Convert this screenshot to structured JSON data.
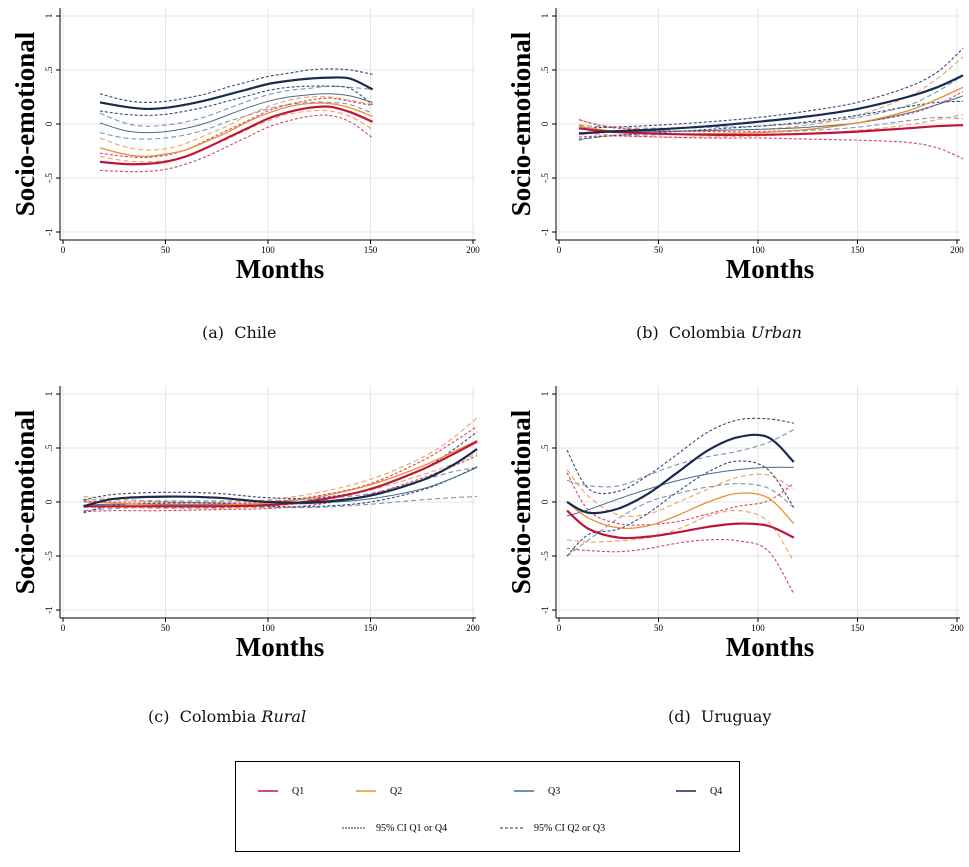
{
  "colors": {
    "Q1": "#c0143c",
    "Q2": "#e8902e",
    "Q3": "#4a6b85",
    "Q4": "#1a2a4f",
    "grid": "#e6e6e6",
    "ci_q1": "#d14670",
    "ci_q2": "#f0a060",
    "ci_q3": "#7a95ad",
    "ci_q4": "#3a4a75"
  },
  "legend": {
    "items": [
      {
        "label": "Q1",
        "color": "#c0143c"
      },
      {
        "label": "Q2",
        "color": "#e8902e"
      },
      {
        "label": "Q3",
        "color": "#4a6b85"
      },
      {
        "label": "Q4",
        "color": "#1a2a4f"
      }
    ],
    "ci_items": [
      {
        "label": "95% CI Q1 or Q4",
        "dash": "fine"
      },
      {
        "label": "95% CI Q2 or Q3",
        "dash": "coarse"
      }
    ]
  },
  "chart_data": [
    {
      "id": "chile",
      "type": "line",
      "caption_prefix": "(a)",
      "caption_main": "Chile",
      "caption_italic": "",
      "xlabel": "Months",
      "ylabel": "Socio-emotional",
      "xlim": [
        0,
        200
      ],
      "ylim": [
        -1,
        1
      ],
      "xticks": [
        "0",
        "50",
        "100",
        "150",
        "200"
      ],
      "yticks": [
        "-1",
        "-.5",
        "0",
        ".5",
        "1"
      ],
      "x": [
        18,
        30,
        40,
        50,
        60,
        70,
        80,
        90,
        100,
        110,
        120,
        130,
        140,
        151
      ],
      "series": [
        {
          "name": "Q1",
          "values": [
            -0.35,
            -0.37,
            -0.37,
            -0.35,
            -0.3,
            -0.22,
            -0.13,
            -0.04,
            0.05,
            0.11,
            0.15,
            0.16,
            0.11,
            0.02
          ],
          "ci_low": [
            -0.43,
            -0.44,
            -0.44,
            -0.42,
            -0.37,
            -0.3,
            -0.21,
            -0.12,
            -0.03,
            0.03,
            0.07,
            0.08,
            0.02,
            -0.13
          ],
          "ci_high": [
            -0.27,
            -0.3,
            -0.31,
            -0.29,
            -0.24,
            -0.15,
            -0.06,
            0.03,
            0.12,
            0.18,
            0.22,
            0.24,
            0.21,
            0.17
          ]
        },
        {
          "name": "Q2",
          "values": [
            -0.22,
            -0.28,
            -0.3,
            -0.28,
            -0.24,
            -0.16,
            -0.08,
            0.02,
            0.1,
            0.16,
            0.19,
            0.19,
            0.15,
            0.07
          ],
          "ci_low": [
            -0.3,
            -0.34,
            -0.35,
            -0.34,
            -0.3,
            -0.22,
            -0.14,
            -0.05,
            0.03,
            0.09,
            0.12,
            0.12,
            0.07,
            -0.05
          ],
          "ci_high": [
            -0.13,
            -0.21,
            -0.24,
            -0.23,
            -0.18,
            -0.1,
            -0.02,
            0.08,
            0.16,
            0.22,
            0.25,
            0.25,
            0.22,
            0.18
          ]
        },
        {
          "name": "Q3",
          "values": [
            0.01,
            -0.06,
            -0.08,
            -0.07,
            -0.04,
            0.01,
            0.08,
            0.15,
            0.21,
            0.25,
            0.27,
            0.28,
            0.26,
            0.2
          ],
          "ci_low": [
            -0.08,
            -0.13,
            -0.14,
            -0.13,
            -0.1,
            -0.05,
            0.02,
            0.08,
            0.14,
            0.18,
            0.2,
            0.2,
            0.18,
            0.1
          ],
          "ci_high": [
            0.1,
            0.01,
            -0.02,
            -0.01,
            0.02,
            0.07,
            0.14,
            0.21,
            0.27,
            0.31,
            0.33,
            0.35,
            0.34,
            0.32
          ]
        },
        {
          "name": "Q4",
          "values": [
            0.2,
            0.16,
            0.14,
            0.15,
            0.18,
            0.22,
            0.27,
            0.32,
            0.37,
            0.4,
            0.42,
            0.43,
            0.42,
            0.32
          ],
          "ci_low": [
            0.12,
            0.09,
            0.08,
            0.09,
            0.12,
            0.16,
            0.21,
            0.26,
            0.31,
            0.34,
            0.35,
            0.35,
            0.33,
            0.18
          ],
          "ci_high": [
            0.28,
            0.22,
            0.2,
            0.21,
            0.24,
            0.28,
            0.34,
            0.39,
            0.44,
            0.47,
            0.5,
            0.51,
            0.5,
            0.46
          ]
        }
      ]
    },
    {
      "id": "colombia-urban",
      "type": "line",
      "caption_prefix": "(b)",
      "caption_main": "Colombia",
      "caption_italic": "Urban",
      "xlabel": "Months",
      "ylabel": "Socio-emotional",
      "xlim": [
        0,
        200
      ],
      "ylim": [
        -1,
        1
      ],
      "xticks": [
        "0",
        "50",
        "100",
        "150",
        "200"
      ],
      "yticks": [
        "-1",
        "-.5",
        "0",
        ".5",
        "1"
      ],
      "x": [
        10,
        25,
        50,
        75,
        100,
        125,
        150,
        175,
        190,
        203
      ],
      "series": [
        {
          "name": "Q1",
          "values": [
            -0.04,
            -0.07,
            -0.09,
            -0.1,
            -0.1,
            -0.09,
            -0.07,
            -0.04,
            -0.02,
            -0.01
          ],
          "ci_low": [
            -0.12,
            -0.11,
            -0.12,
            -0.13,
            -0.13,
            -0.14,
            -0.15,
            -0.17,
            -0.22,
            -0.32
          ],
          "ci_high": [
            0.04,
            -0.03,
            -0.06,
            -0.07,
            -0.07,
            -0.05,
            0.01,
            0.09,
            0.18,
            0.3
          ]
        },
        {
          "name": "Q2",
          "values": [
            -0.02,
            -0.06,
            -0.09,
            -0.09,
            -0.08,
            -0.05,
            0.01,
            0.12,
            0.23,
            0.34
          ],
          "ci_low": [
            -0.08,
            -0.1,
            -0.12,
            -0.12,
            -0.11,
            -0.09,
            -0.06,
            -0.01,
            0.04,
            0.09
          ],
          "ci_high": [
            0.04,
            -0.02,
            -0.06,
            -0.06,
            -0.05,
            -0.01,
            0.08,
            0.25,
            0.42,
            0.62
          ]
        },
        {
          "name": "Q3",
          "values": [
            -0.08,
            -0.07,
            -0.07,
            -0.06,
            -0.05,
            -0.03,
            0.01,
            0.1,
            0.18,
            0.26
          ],
          "ci_low": [
            -0.15,
            -0.11,
            -0.1,
            -0.09,
            -0.08,
            -0.06,
            -0.03,
            0.03,
            0.06,
            0.05
          ],
          "ci_high": [
            -0.01,
            -0.03,
            -0.04,
            -0.03,
            -0.02,
            0.01,
            0.06,
            0.17,
            0.3,
            0.45
          ]
        },
        {
          "name": "Q4",
          "values": [
            -0.09,
            -0.07,
            -0.05,
            -0.02,
            0.02,
            0.07,
            0.14,
            0.25,
            0.34,
            0.45
          ],
          "ci_low": [
            -0.14,
            -0.11,
            -0.08,
            -0.05,
            -0.02,
            0.02,
            0.08,
            0.16,
            0.2,
            0.21
          ],
          "ci_high": [
            -0.04,
            -0.03,
            -0.01,
            0.02,
            0.06,
            0.12,
            0.2,
            0.34,
            0.48,
            0.7
          ]
        }
      ]
    },
    {
      "id": "colombia-rural",
      "type": "line",
      "caption_prefix": "(c)",
      "caption_main": "Colombia",
      "caption_italic": "Rural",
      "xlabel": "Months",
      "ylabel": "Socio-emotional",
      "xlim": [
        0,
        200
      ],
      "ylim": [
        -1,
        1
      ],
      "xticks": [
        "0",
        "50",
        "100",
        "150",
        "200"
      ],
      "yticks": [
        "-1",
        "-.5",
        "0",
        ".5",
        "1"
      ],
      "x": [
        10,
        25,
        50,
        75,
        100,
        125,
        150,
        175,
        190,
        202
      ],
      "series": [
        {
          "name": "Q1",
          "values": [
            -0.04,
            -0.04,
            -0.04,
            -0.04,
            -0.03,
            0.02,
            0.12,
            0.3,
            0.44,
            0.56
          ],
          "ci_low": [
            -0.09,
            -0.08,
            -0.08,
            -0.07,
            -0.06,
            -0.02,
            0.07,
            0.22,
            0.33,
            0.43
          ],
          "ci_high": [
            0.01,
            0.0,
            0.0,
            -0.01,
            0.0,
            0.06,
            0.17,
            0.38,
            0.55,
            0.7
          ]
        },
        {
          "name": "Q2",
          "values": [
            0.0,
            -0.01,
            -0.03,
            -0.03,
            -0.01,
            0.05,
            0.16,
            0.33,
            0.46,
            0.57
          ],
          "ci_low": [
            -0.05,
            -0.05,
            -0.06,
            -0.06,
            -0.04,
            0.01,
            0.11,
            0.25,
            0.35,
            0.45
          ],
          "ci_high": [
            0.05,
            0.03,
            0.0,
            0.0,
            0.02,
            0.09,
            0.21,
            0.41,
            0.59,
            0.78
          ]
        },
        {
          "name": "Q3",
          "values": [
            -0.03,
            -0.02,
            -0.02,
            -0.02,
            -0.02,
            -0.01,
            0.03,
            0.12,
            0.22,
            0.32
          ],
          "ci_low": [
            -0.08,
            -0.06,
            -0.05,
            -0.05,
            -0.05,
            -0.05,
            -0.02,
            0.02,
            0.04,
            0.05
          ],
          "ci_high": [
            0.02,
            0.02,
            0.01,
            0.01,
            0.01,
            0.03,
            0.08,
            0.2,
            0.28,
            0.32
          ]
        },
        {
          "name": "Q4",
          "values": [
            -0.04,
            0.03,
            0.05,
            0.04,
            0.0,
            0.0,
            0.06,
            0.2,
            0.34,
            0.49
          ],
          "ci_low": [
            -0.1,
            -0.03,
            -0.01,
            -0.01,
            -0.04,
            -0.04,
            0.0,
            0.11,
            0.22,
            0.33
          ],
          "ci_high": [
            0.02,
            0.07,
            0.09,
            0.08,
            0.04,
            0.04,
            0.12,
            0.3,
            0.48,
            0.65
          ]
        }
      ]
    },
    {
      "id": "uruguay",
      "type": "line",
      "caption_prefix": "(d)",
      "caption_main": "Uruguay",
      "caption_italic": "",
      "xlabel": "Months",
      "ylabel": "Socio-emotional",
      "xlim": [
        0,
        200
      ],
      "ylim": [
        -1,
        1
      ],
      "xticks": [
        "0",
        "50",
        "100",
        "150",
        "200"
      ],
      "yticks": [
        "-1",
        "-.5",
        "0",
        ".5",
        "1"
      ],
      "x": [
        4,
        15,
        30,
        45,
        60,
        75,
        90,
        105,
        118
      ],
      "series": [
        {
          "name": "Q1",
          "values": [
            -0.08,
            -0.25,
            -0.33,
            -0.32,
            -0.28,
            -0.23,
            -0.2,
            -0.22,
            -0.33
          ],
          "ci_low": [
            -0.43,
            -0.45,
            -0.46,
            -0.43,
            -0.38,
            -0.35,
            -0.36,
            -0.45,
            -0.85
          ],
          "ci_high": [
            0.27,
            -0.08,
            -0.2,
            -0.21,
            -0.18,
            -0.11,
            -0.04,
            0.01,
            0.17
          ]
        },
        {
          "name": "Q2",
          "values": [
            0.0,
            -0.15,
            -0.24,
            -0.22,
            -0.12,
            0.0,
            0.08,
            0.04,
            -0.2
          ],
          "ci_low": [
            -0.35,
            -0.37,
            -0.36,
            -0.33,
            -0.25,
            -0.13,
            -0.08,
            -0.18,
            -0.55
          ],
          "ci_high": [
            0.3,
            0.05,
            -0.12,
            -0.11,
            0.0,
            0.12,
            0.23,
            0.25,
            0.12
          ]
        },
        {
          "name": "Q3",
          "values": [
            -0.13,
            -0.07,
            0.03,
            0.12,
            0.2,
            0.26,
            0.3,
            0.32,
            0.32
          ],
          "ci_low": [
            -0.5,
            -0.35,
            -0.15,
            0.0,
            0.08,
            0.14,
            0.17,
            0.13,
            -0.05
          ],
          "ci_high": [
            0.2,
            0.15,
            0.15,
            0.25,
            0.35,
            0.42,
            0.47,
            0.55,
            0.67
          ]
        },
        {
          "name": "Q4",
          "values": [
            0.0,
            -0.1,
            -0.06,
            0.08,
            0.28,
            0.48,
            0.6,
            0.6,
            0.37
          ],
          "ci_low": [
            -0.5,
            -0.3,
            -0.25,
            -0.1,
            0.1,
            0.28,
            0.38,
            0.3,
            -0.05
          ],
          "ci_high": [
            0.48,
            0.12,
            0.1,
            0.25,
            0.45,
            0.65,
            0.76,
            0.77,
            0.73
          ]
        }
      ]
    }
  ]
}
